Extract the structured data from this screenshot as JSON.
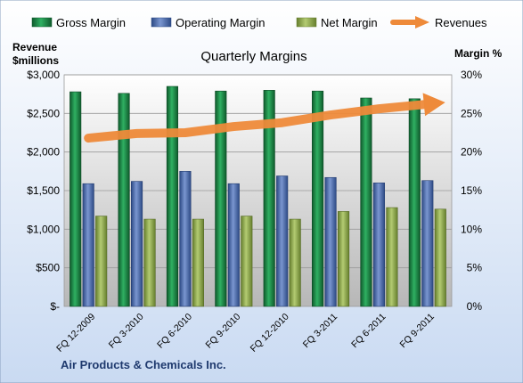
{
  "chart_data": {
    "type": "bar",
    "title": "Quarterly Margins",
    "ylabel_left_line1": "Revenue",
    "ylabel_left_line2": "$millions",
    "ylabel_right": "Margin %",
    "footer": "Air Products  & Chemicals Inc.",
    "categories": [
      "FQ 12-2009",
      "FQ 3-2010",
      "FQ 6-2010",
      "FQ 9-2010",
      "FQ 12-2010",
      "FQ 3-2011",
      "FQ 6-2011",
      "FQ 9-2011"
    ],
    "y_left_ticks": [
      "$-",
      "$500",
      "$1,000",
      "$1,500",
      "$2,000",
      "$2,500",
      "$3,000"
    ],
    "y_right_ticks": [
      "0%",
      "5%",
      "10%",
      "15%",
      "20%",
      "25%",
      "30%"
    ],
    "ylim_left": [
      0,
      3000
    ],
    "ylim_right": [
      0,
      30
    ],
    "series": [
      {
        "name": "Gross Margin",
        "axis": "right",
        "kind": "bar",
        "color": "#1e8a4a",
        "values": [
          27.8,
          27.6,
          28.5,
          27.9,
          28.0,
          27.9,
          27.0,
          26.9
        ]
      },
      {
        "name": "Operating Margin",
        "axis": "right",
        "kind": "bar",
        "color": "#4f6fb0",
        "values": [
          15.9,
          16.2,
          17.5,
          15.9,
          16.9,
          16.7,
          16.0,
          16.3
        ]
      },
      {
        "name": "Net Margin",
        "axis": "right",
        "kind": "bar",
        "color": "#8faa4e",
        "values": [
          11.7,
          11.3,
          11.3,
          11.7,
          11.3,
          12.3,
          12.8,
          12.6
        ]
      },
      {
        "name": "Revenues",
        "axis": "left",
        "kind": "line",
        "color": "#ee8a3a",
        "values": [
          2180,
          2240,
          2250,
          2330,
          2380,
          2480,
          2560,
          2620
        ]
      }
    ],
    "grid": true,
    "legend": "top"
  }
}
